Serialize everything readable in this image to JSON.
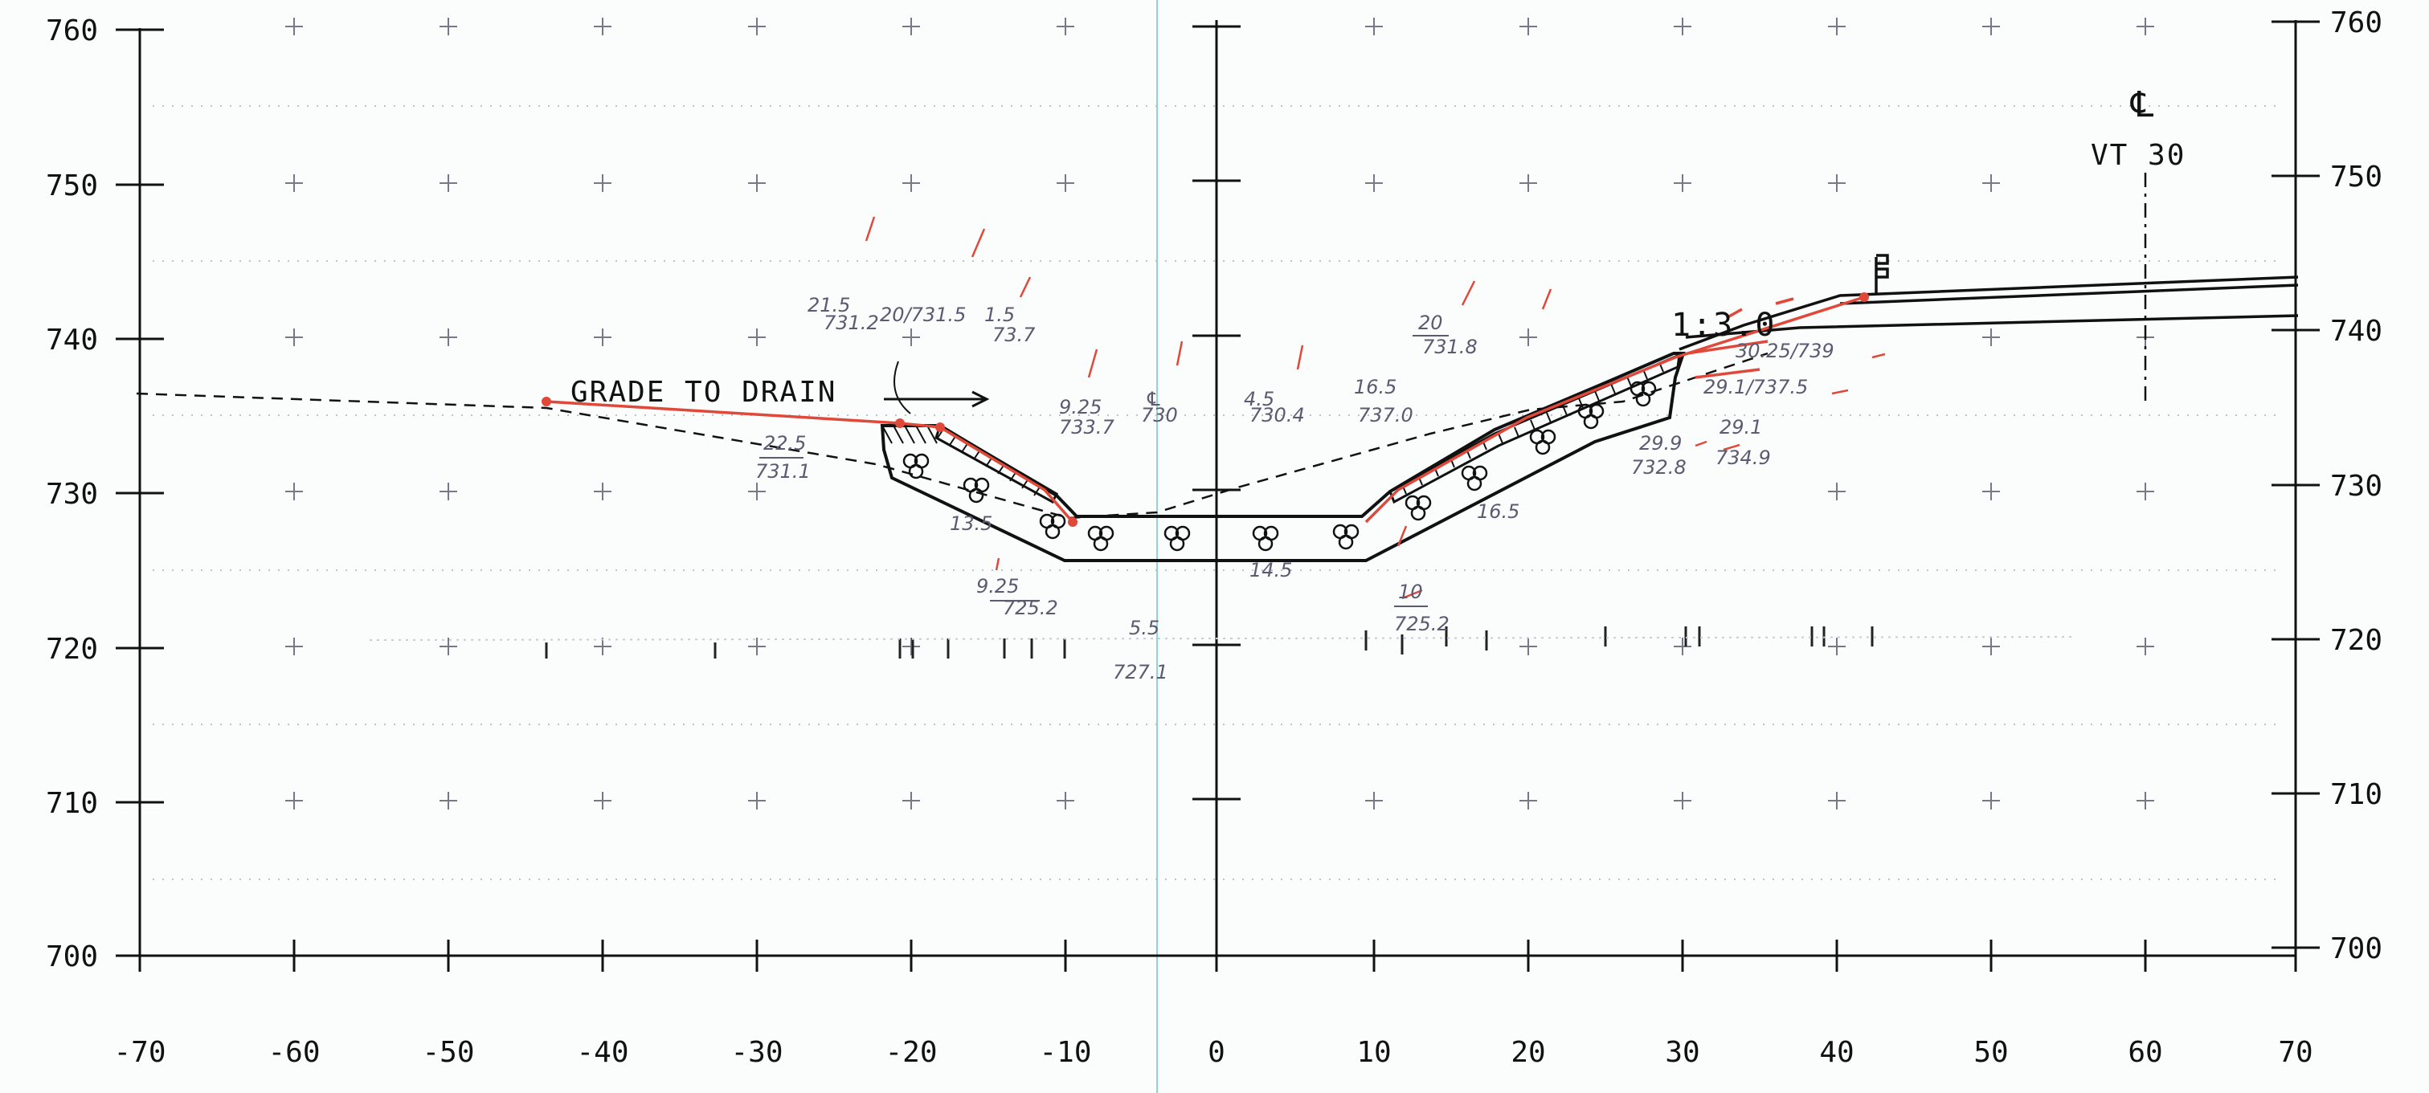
{
  "y_axis": {
    "left_labels": [
      "760",
      "750",
      "740",
      "730",
      "720",
      "710",
      "700"
    ],
    "right_labels": [
      "760",
      "750",
      "740",
      "730",
      "720",
      "710",
      "700"
    ],
    "values": [
      760,
      750,
      740,
      730,
      720,
      710,
      700
    ]
  },
  "x_axis": {
    "labels": [
      "-70",
      "-60",
      "-50",
      "-40",
      "-30",
      "-20",
      "-10",
      "0",
      "10",
      "20",
      "30",
      "40",
      "50",
      "60",
      "70"
    ],
    "values": [
      -70,
      -60,
      -50,
      -40,
      -30,
      -20,
      -10,
      0,
      10,
      20,
      30,
      40,
      50,
      60,
      70
    ]
  },
  "annotations": {
    "grade_note": "GRADE TO DRAIN",
    "centerline_symbol": "℄",
    "route_label": "VT 30",
    "slope_label": "1:3.0"
  },
  "handwritten": {
    "left_top_a": "21.5",
    "left_top_b": "731.2",
    "left_top_c": "20/731.5",
    "left_mid_a": "1.5",
    "left_mid_b": "73.7",
    "left_low_a": "22.5",
    "left_low_b": "731.1",
    "ditch_a": "9.25",
    "ditch_b": "725.2",
    "ditch_c": "9.25",
    "ditch_d": "733.7",
    "center_label": "℄",
    "center_value": "730",
    "center_right_a": "4.5",
    "center_right_b": "730.4",
    "right_mid_a": "16.5",
    "right_mid_b": "737.0",
    "right_top_a": "20",
    "right_top_b": "731.8",
    "right_bot_a": "10",
    "right_bot_b": "725.2",
    "slope_a": "30.25/739",
    "slope_b": "29.1/737.5",
    "slope_c": "29.1",
    "slope_d": "734.9",
    "slope_e": "29.9",
    "slope_f": "732.8",
    "bottom_a": "5.5",
    "bottom_b": "727.1",
    "dim_a": "14.5",
    "dim_b": "13.5",
    "dim_c": "16.5"
  },
  "colors": {
    "ink": "#111111",
    "grid_cross": "#777788",
    "dots": "#b8c4cc",
    "redline": "#e0483a",
    "pencil": "#5a5a72",
    "cyan_line": "#8fd6d2"
  }
}
